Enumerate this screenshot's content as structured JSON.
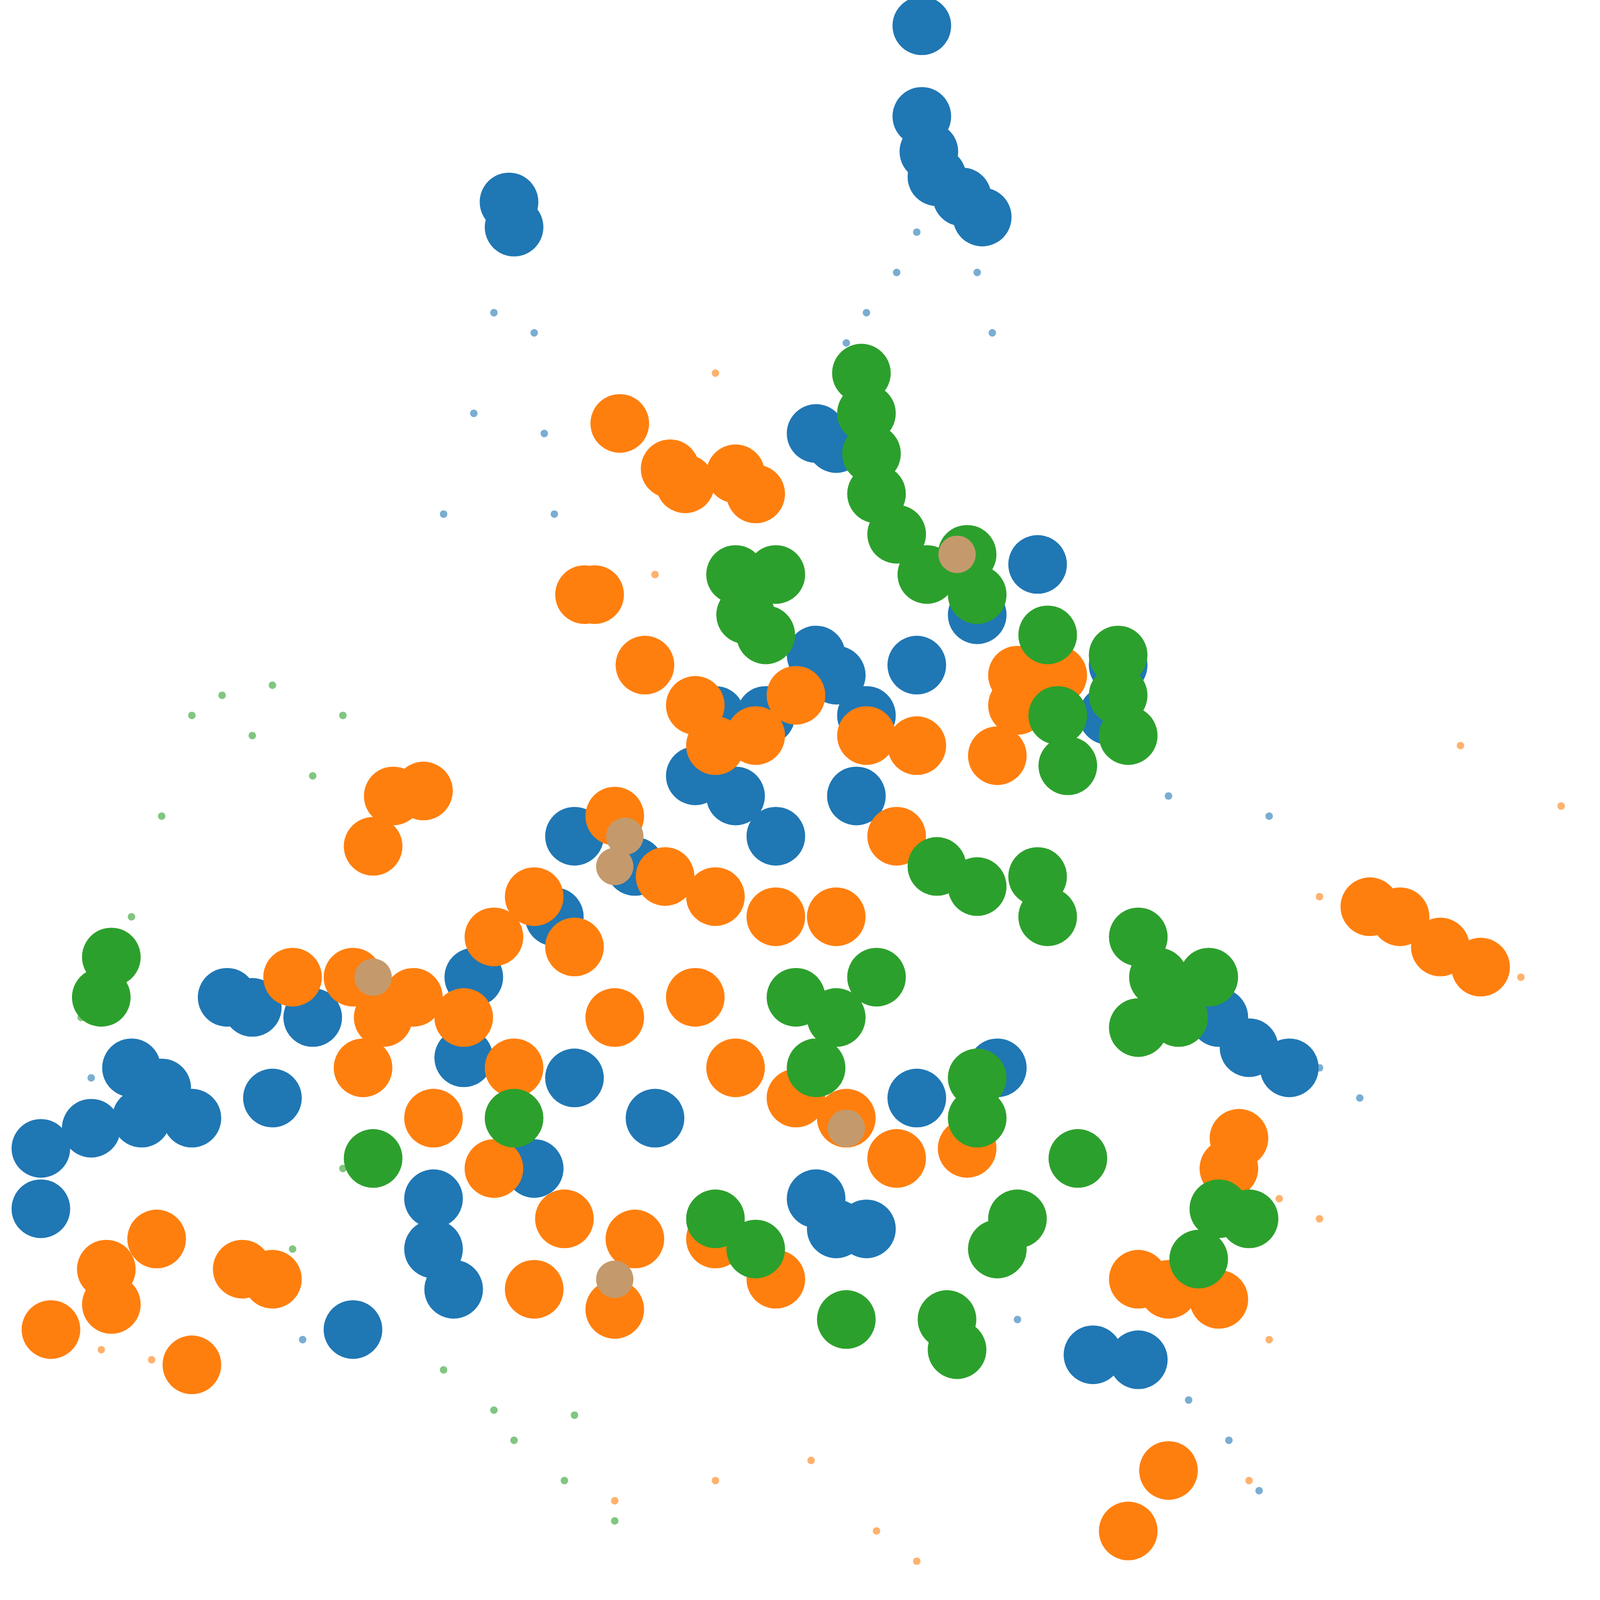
{
  "chart_data": {
    "type": "scatter",
    "xlim": [
      0,
      1568
    ],
    "ylim": [
      0,
      1568
    ],
    "grid": false,
    "tick_labels": false,
    "series": [
      {
        "color": "#1f77b4",
        "marker": "dot",
        "values": [
          [
            900,
            1348
          ],
          [
            880,
            1308
          ],
          [
            850,
            1268
          ],
          [
            830,
            1238
          ],
          [
            960,
            1308
          ],
          [
            975,
            1248
          ],
          [
            480,
            1268
          ],
          [
            460,
            1168
          ],
          [
            430,
            1068
          ],
          [
            520,
            1248
          ],
          [
            530,
            1148
          ],
          [
            540,
            1068
          ],
          [
            1150,
            788
          ],
          [
            1250,
            768
          ],
          [
            1300,
            518
          ],
          [
            1340,
            488
          ],
          [
            1210,
            148
          ],
          [
            1240,
            98
          ],
          [
            1170,
            188
          ],
          [
            1000,
            268
          ],
          [
            290,
            248
          ],
          [
            80,
            508
          ]
        ]
      },
      {
        "color": "#ff7f0e",
        "marker": "dot",
        "values": [
          [
            1440,
            838
          ],
          [
            1540,
            778
          ],
          [
            1500,
            608
          ],
          [
            1300,
            688
          ],
          [
            1260,
            388
          ],
          [
            1300,
            368
          ],
          [
            1250,
            248
          ],
          [
            700,
            108
          ],
          [
            860,
            58
          ],
          [
            795,
            128
          ],
          [
            1230,
            108
          ],
          [
            600,
            88
          ],
          [
            900,
            28
          ],
          [
            700,
            1208
          ],
          [
            640,
            1008
          ],
          [
            90,
            238
          ],
          [
            140,
            228
          ]
        ]
      },
      {
        "color": "#2ca02c",
        "marker": "dot",
        "values": [
          [
            70,
            568
          ],
          [
            240,
            848
          ],
          [
            260,
            898
          ],
          [
            180,
            868
          ],
          [
            150,
            768
          ],
          [
            120,
            668
          ],
          [
            330,
            868
          ],
          [
            380,
            808
          ],
          [
            210,
            888
          ],
          [
            300,
            808
          ],
          [
            330,
            418
          ],
          [
            280,
            338
          ],
          [
            480,
            178
          ],
          [
            560,
            173
          ],
          [
            430,
            218
          ],
          [
            500,
            148
          ],
          [
            550,
            108
          ],
          [
            600,
            68
          ]
        ]
      },
      {
        "color": "#1f77b4",
        "marker": "circle",
        "values": [
          [
            905,
            1553
          ],
          [
            905,
            1463
          ],
          [
            912,
            1428
          ],
          [
            920,
            1403
          ],
          [
            945,
            1383
          ],
          [
            965,
            1363
          ],
          [
            495,
            1378
          ],
          [
            500,
            1353
          ],
          [
            820,
            1138
          ],
          [
            800,
            1148
          ],
          [
            700,
            868
          ],
          [
            750,
            868
          ],
          [
            800,
            928
          ],
          [
            820,
            908
          ],
          [
            620,
            718
          ],
          [
            560,
            748
          ],
          [
            720,
            788
          ],
          [
            850,
            868
          ],
          [
            900,
            918
          ],
          [
            960,
            968
          ],
          [
            1020,
            1018
          ],
          [
            1100,
            918
          ],
          [
            1090,
            868
          ],
          [
            680,
            808
          ],
          [
            760,
            748
          ],
          [
            840,
            788
          ],
          [
            540,
            668
          ],
          [
            460,
            608
          ],
          [
            450,
            528
          ],
          [
            560,
            508
          ],
          [
            640,
            468
          ],
          [
            520,
            418
          ],
          [
            215,
            588
          ],
          [
            240,
            578
          ],
          [
            300,
            568
          ],
          [
            30,
            438
          ],
          [
            80,
            458
          ],
          [
            130,
            468
          ],
          [
            180,
            468
          ],
          [
            30,
            378
          ],
          [
            120,
            518
          ],
          [
            150,
            498
          ],
          [
            260,
            488
          ],
          [
            1230,
            538
          ],
          [
            1270,
            518
          ],
          [
            1200,
            568
          ],
          [
            420,
            388
          ],
          [
            420,
            338
          ],
          [
            440,
            298
          ],
          [
            820,
            358
          ],
          [
            800,
            388
          ],
          [
            850,
            358
          ],
          [
            900,
            488
          ],
          [
            980,
            518
          ],
          [
            1075,
            233
          ],
          [
            1120,
            228
          ],
          [
            340,
            258
          ]
        ]
      },
      {
        "color": "#ff7f0e",
        "marker": "circle",
        "values": [
          [
            605,
            1158
          ],
          [
            655,
            1113
          ],
          [
            670,
            1098
          ],
          [
            720,
            1108
          ],
          [
            740,
            1088
          ],
          [
            570,
            988
          ],
          [
            580,
            988
          ],
          [
            630,
            918
          ],
          [
            680,
            878
          ],
          [
            740,
            848
          ],
          [
            780,
            888
          ],
          [
            850,
            848
          ],
          [
            700,
            838
          ],
          [
            900,
            838
          ],
          [
            980,
            828
          ],
          [
            1000,
            908
          ],
          [
            1040,
            908
          ],
          [
            600,
            768
          ],
          [
            650,
            708
          ],
          [
            700,
            688
          ],
          [
            760,
            668
          ],
          [
            820,
            668
          ],
          [
            880,
            748
          ],
          [
            520,
            688
          ],
          [
            560,
            638
          ],
          [
            480,
            648
          ],
          [
            450,
            568
          ],
          [
            500,
            518
          ],
          [
            600,
            568
          ],
          [
            680,
            588
          ],
          [
            720,
            518
          ],
          [
            780,
            488
          ],
          [
            830,
            468
          ],
          [
            880,
            428
          ],
          [
            950,
            438
          ],
          [
            420,
            468
          ],
          [
            480,
            418
          ],
          [
            550,
            368
          ],
          [
            620,
            348
          ],
          [
            700,
            348
          ],
          [
            760,
            308
          ],
          [
            520,
            298
          ],
          [
            600,
            278
          ],
          [
            380,
            788
          ],
          [
            410,
            793
          ],
          [
            360,
            738
          ],
          [
            280,
            608
          ],
          [
            370,
            568
          ],
          [
            350,
            518
          ],
          [
            400,
            588
          ],
          [
            340,
            608
          ],
          [
            1380,
            668
          ],
          [
            1420,
            638
          ],
          [
            1460,
            618
          ],
          [
            1350,
            678
          ],
          [
            1210,
            418
          ],
          [
            1220,
            448
          ],
          [
            1120,
            308
          ],
          [
            1150,
            298
          ],
          [
            1200,
            288
          ],
          [
            145,
            348
          ],
          [
            95,
            318
          ],
          [
            100,
            283
          ],
          [
            180,
            223
          ],
          [
            230,
            318
          ],
          [
            260,
            308
          ],
          [
            40,
            258
          ],
          [
            1110,
            58
          ],
          [
            1150,
            118
          ],
          [
            1000,
            878
          ]
        ]
      },
      {
        "color": "#2ca02c",
        "marker": "circle",
        "values": [
          [
            845,
            1208
          ],
          [
            850,
            1168
          ],
          [
            855,
            1128
          ],
          [
            860,
            1088
          ],
          [
            880,
            1048
          ],
          [
            910,
            1008
          ],
          [
            960,
            988
          ],
          [
            950,
            1028
          ],
          [
            720,
            1008
          ],
          [
            760,
            1008
          ],
          [
            730,
            968
          ],
          [
            750,
            948
          ],
          [
            1100,
            928
          ],
          [
            1100,
            888
          ],
          [
            1110,
            848
          ],
          [
            1030,
            948
          ],
          [
            1040,
            868
          ],
          [
            1050,
            818
          ],
          [
            920,
            718
          ],
          [
            960,
            698
          ],
          [
            1020,
            708
          ],
          [
            1030,
            668
          ],
          [
            1120,
            648
          ],
          [
            1140,
            608
          ],
          [
            1190,
            608
          ],
          [
            1160,
            568
          ],
          [
            1120,
            558
          ],
          [
            960,
            508
          ],
          [
            960,
            468
          ],
          [
            1060,
            428
          ],
          [
            820,
            568
          ],
          [
            800,
            518
          ],
          [
            780,
            588
          ],
          [
            860,
            608
          ],
          [
            940,
            238
          ],
          [
            930,
            268
          ],
          [
            830,
            268
          ],
          [
            700,
            368
          ],
          [
            740,
            338
          ],
          [
            1200,
            378
          ],
          [
            1230,
            368
          ],
          [
            1180,
            328
          ],
          [
            1000,
            368
          ],
          [
            980,
            338
          ],
          [
            100,
            628
          ],
          [
            90,
            588
          ],
          [
            360,
            428
          ],
          [
            500,
            468
          ]
        ]
      },
      {
        "color": "#c49a6c",
        "marker": "small",
        "values": [
          [
            610,
            748
          ],
          [
            600,
            718
          ],
          [
            360,
            608
          ],
          [
            830,
            458
          ],
          [
            940,
            1028
          ],
          [
            600,
            308
          ]
        ]
      }
    ]
  }
}
